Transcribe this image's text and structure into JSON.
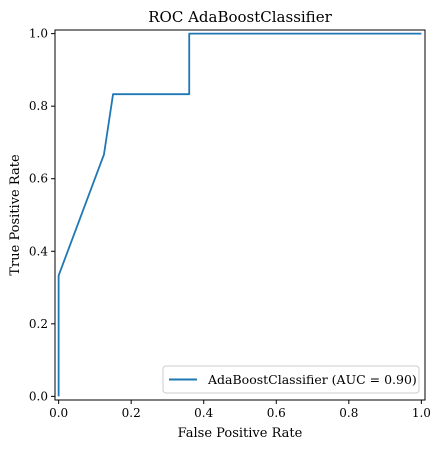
{
  "chart_data": {
    "type": "line",
    "title": "ROC AdaBoostClassifier",
    "xlabel": "False Positive Rate",
    "ylabel": "True Positive Rate",
    "xlim": [
      -0.01,
      1.01
    ],
    "ylim": [
      -0.01,
      1.01
    ],
    "xticks": [
      0.0,
      0.2,
      0.4,
      0.6,
      0.8,
      1.0
    ],
    "xtick_labels": [
      "0.0",
      "0.2",
      "0.4",
      "0.6",
      "0.8",
      "1.0"
    ],
    "yticks": [
      0.0,
      0.2,
      0.4,
      0.6,
      0.8,
      1.0
    ],
    "ytick_labels": [
      "0.0",
      "0.2",
      "0.4",
      "0.6",
      "0.8",
      "1.0"
    ],
    "grid": false,
    "legend_position": "lower-right",
    "series": [
      {
        "name": "AdaBoostClassifier (AUC = 0.90)",
        "color": "#1f77b4",
        "x": [
          0.0,
          0.0,
          0.0,
          0.125,
          0.15,
          0.36,
          0.36,
          1.0
        ],
        "y": [
          0.0,
          0.333,
          0.333,
          0.667,
          0.833,
          0.833,
          1.0,
          1.0
        ]
      }
    ]
  }
}
